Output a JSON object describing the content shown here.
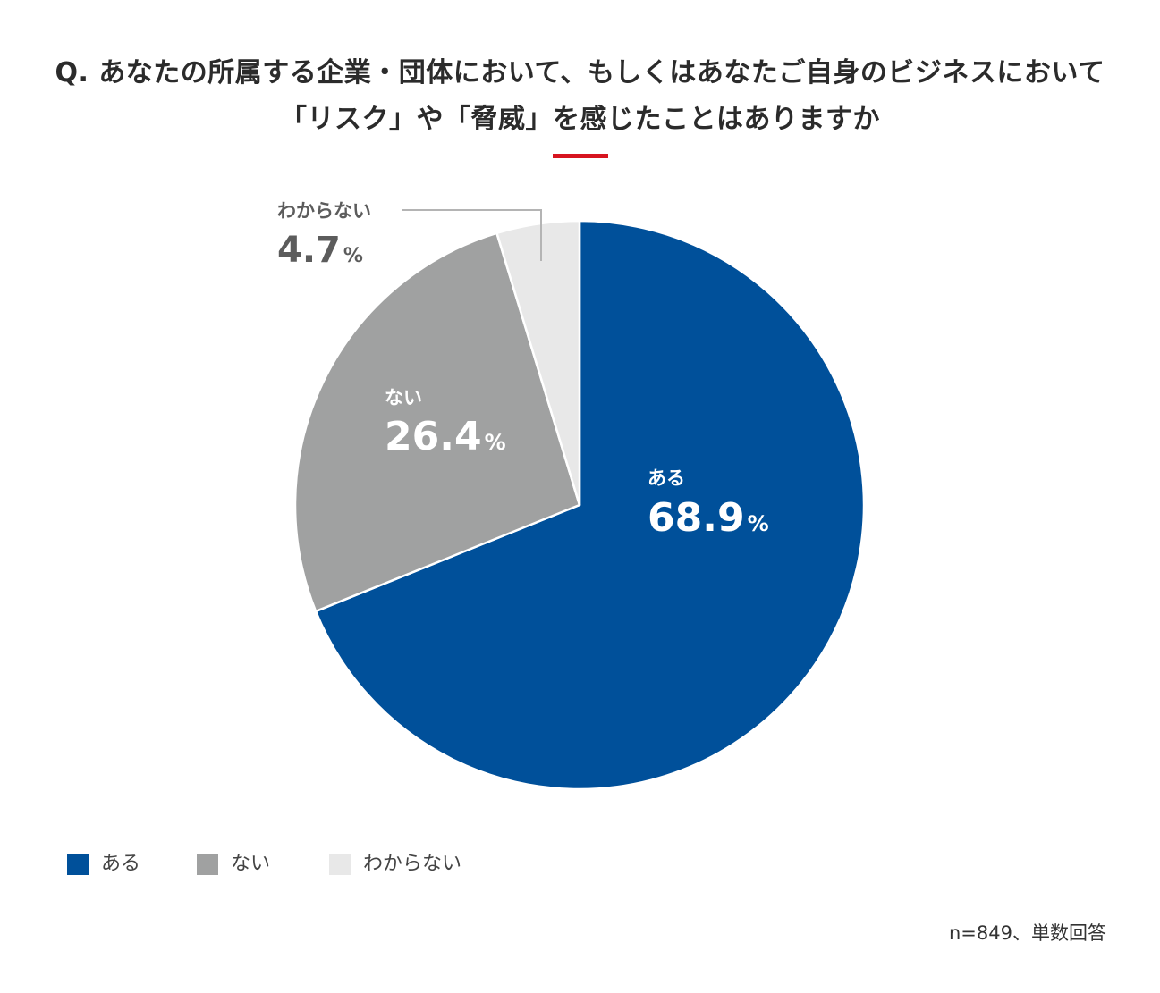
{
  "title": {
    "line1": "Q. あなたの所属する企業・団体において、もしくはあなたご自身のビジネスにおいて",
    "line2": "「リスク」や「脅威」を感じたことはありますか"
  },
  "colors": {
    "accent": "#d7141f",
    "aru": "#00509a",
    "nai": "#a0a1a1",
    "wakaranai": "#e8e8e8",
    "leader": "#b4b4b4"
  },
  "chart_data": {
    "type": "pie",
    "start": "12 o'clock, clockwise",
    "slices": [
      {
        "label": "ある",
        "value": 68.9,
        "display": "68.9",
        "unit": "%",
        "color": "#00509a",
        "text_color": "#ffffff"
      },
      {
        "label": "ない",
        "value": 26.4,
        "display": "26.4",
        "unit": "%",
        "color": "#a0a1a1",
        "text_color": "#ffffff"
      },
      {
        "label": "わからない",
        "value": 4.7,
        "display": "4.7",
        "unit": "%",
        "color": "#e8e8e8",
        "text_color": "#5c5c5c",
        "label_outside": true
      }
    ],
    "legend": {
      "placement": "bottom-left",
      "items": [
        {
          "label": "ある",
          "color": "#00509a"
        },
        {
          "label": "ない",
          "color": "#a0a1a1"
        },
        {
          "label": "わからない",
          "color": "#e8e8e8"
        }
      ]
    }
  },
  "note": "n=849、単数回答"
}
